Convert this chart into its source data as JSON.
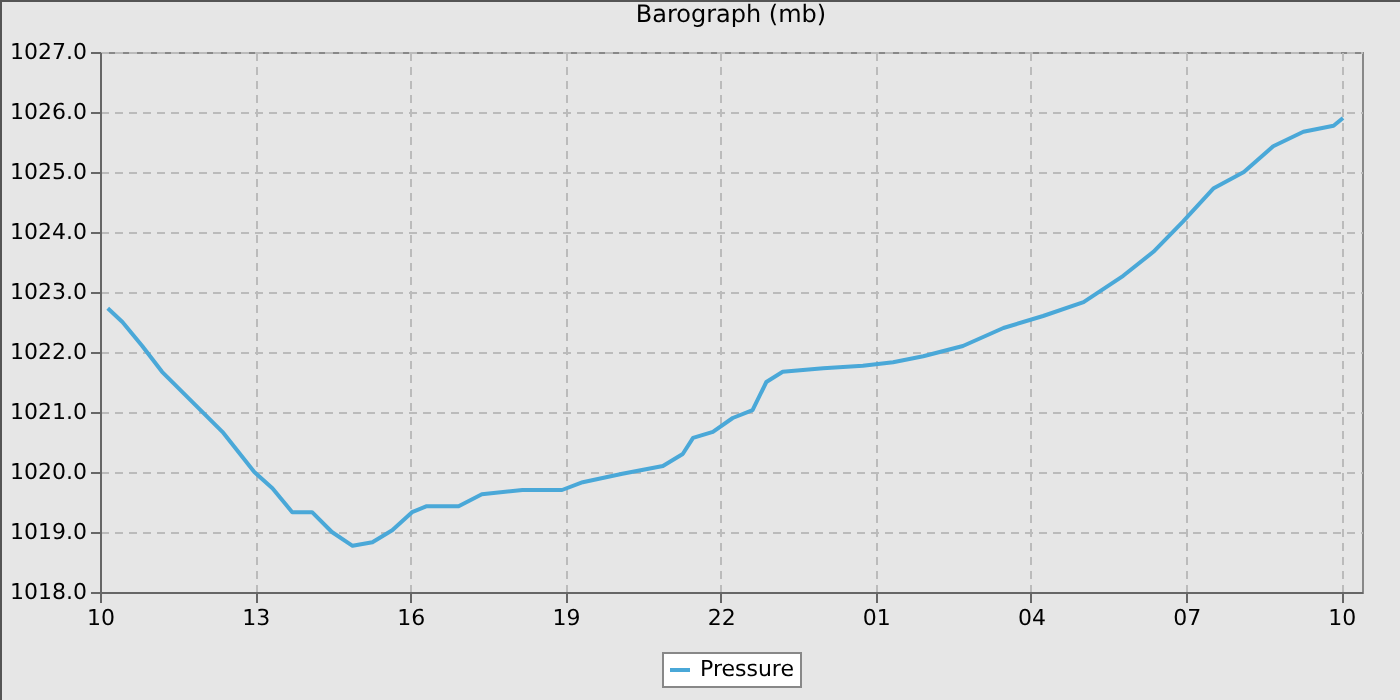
{
  "chart_data": {
    "type": "line",
    "title": "Barograph (mb)",
    "x": [
      "--01-01T10:09",
      "--01-01T10:26",
      "--01-01T10:49",
      "--01-01T11:12",
      "--01-01T11:47",
      "--01-01T12:22",
      "--01-01T12:59",
      "--01-01T13:20",
      "--01-01T13:43",
      "--01-01T14:06",
      "--01-01T14:29",
      "--01-01T14:53",
      "--01-01T15:16",
      "--01-01T15:39",
      "--01-01T16:02",
      "--01-01T16:19",
      "--01-01T16:56",
      "--01-01T17:23",
      "--01-01T18:10",
      "--01-01T18:56",
      "--01-01T19:20",
      "--01-01T20:06",
      "--01-01T20:53",
      "--01-01T21:16",
      "--01-01T21:28",
      "--01-01T21:51",
      "--01-01T22:14",
      "--01-01T22:37",
      "--01-01T22:53",
      "--01-01T23:12",
      "--01-01T23:59",
      "--01-02T00:45",
      "--01-02T01:20",
      "--01-02T01:55",
      "--01-02T02:41",
      "--01-02T03:28",
      "--01-02T04:14",
      "--01-02T05:01",
      "--01-02T05:47",
      "--01-02T06:22",
      "--01-02T06:56",
      "--01-02T07:32",
      "--01-02T08:07",
      "--01-02T08:41",
      "--01-02T09:16",
      "--01-02T09:51",
      "--01-02T10:02"
    ],
    "series": [
      {
        "name": "Pressure",
        "color": "#4aa8d8",
        "values": [
          1022.73,
          1022.5,
          1022.1,
          1021.67,
          1021.17,
          1020.67,
          1020.0,
          1019.73,
          1019.33,
          1019.33,
          1019.0,
          1018.77,
          1018.83,
          1019.03,
          1019.33,
          1019.43,
          1019.43,
          1019.63,
          1019.7,
          1019.7,
          1019.83,
          1019.97,
          1020.1,
          1020.3,
          1020.57,
          1020.67,
          1020.9,
          1021.03,
          1021.5,
          1021.67,
          1021.73,
          1021.77,
          1021.83,
          1021.93,
          1022.1,
          1022.4,
          1022.6,
          1022.83,
          1023.27,
          1023.67,
          1024.17,
          1024.73,
          1025.0,
          1025.43,
          1025.67,
          1025.77,
          1025.9
        ]
      }
    ],
    "xlim": [
      "--01-01T10:00",
      "--01-02T10:24"
    ],
    "xticks": [
      {
        "value": "--01-01T10:00",
        "label": "10"
      },
      {
        "value": "--01-01T13:00",
        "label": "13"
      },
      {
        "value": "--01-01T16:00",
        "label": "16"
      },
      {
        "value": "--01-01T19:00",
        "label": "19"
      },
      {
        "value": "--01-01T22:00",
        "label": "22"
      },
      {
        "value": "--01-02T01:00",
        "label": "01"
      },
      {
        "value": "--01-02T04:00",
        "label": "04"
      },
      {
        "value": "--01-02T07:00",
        "label": "07"
      },
      {
        "value": "--01-02T10:00",
        "label": "10"
      }
    ],
    "ylim": [
      1018,
      1027
    ],
    "yticks": [
      {
        "value": 1018,
        "label": "1018.0"
      },
      {
        "value": 1019,
        "label": "1019.0"
      },
      {
        "value": 1020,
        "label": "1020.0"
      },
      {
        "value": 1021,
        "label": "1021.0"
      },
      {
        "value": 1022,
        "label": "1022.0"
      },
      {
        "value": 1023,
        "label": "1023.0"
      },
      {
        "value": 1024,
        "label": "1024.0"
      },
      {
        "value": 1025,
        "label": "1025.0"
      },
      {
        "value": 1026,
        "label": "1026.0"
      },
      {
        "value": 1027,
        "label": "1027.0"
      }
    ],
    "grid": true,
    "legend": "bottom",
    "marker": "none",
    "line_style": "solid"
  }
}
